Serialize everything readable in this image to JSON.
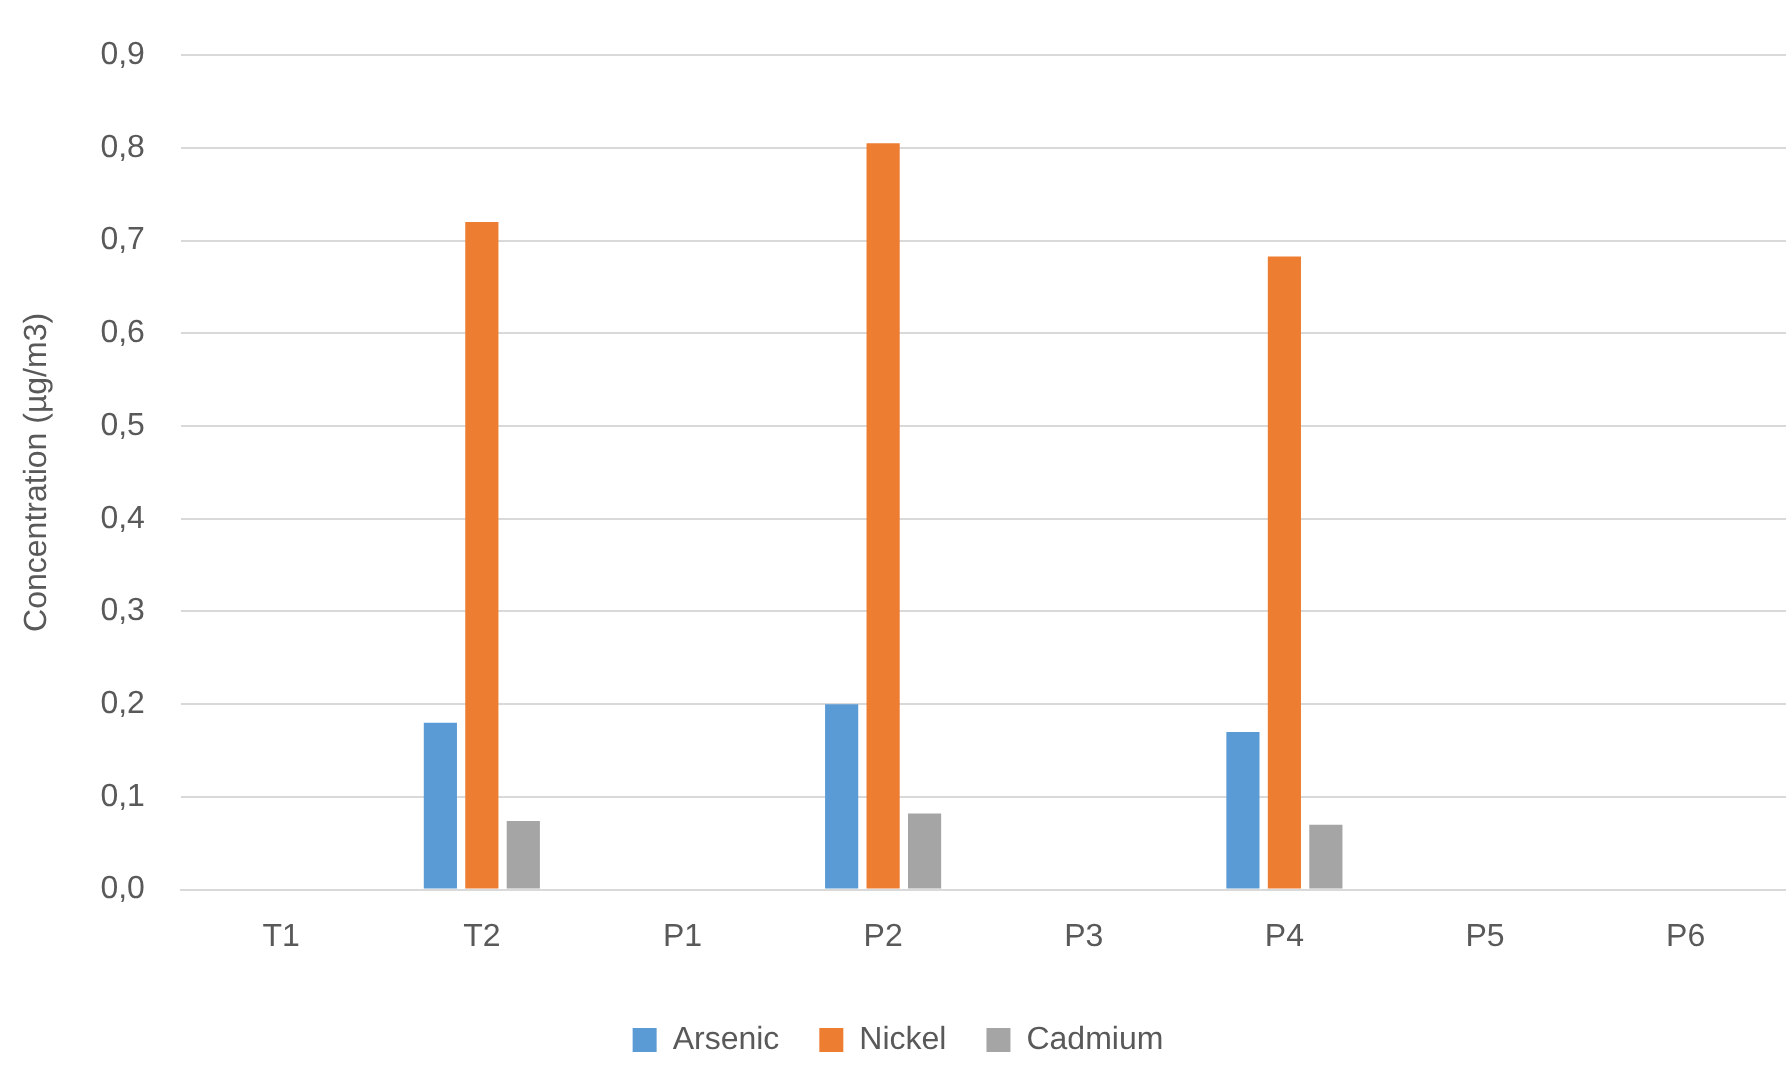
{
  "chart_data": {
    "type": "bar",
    "ylabel": "Concentration (µg/m3)",
    "categories": [
      "T1",
      "T2",
      "P1",
      "P2",
      "P3",
      "P4",
      "P5",
      "P6"
    ],
    "series": [
      {
        "name": "Arsenic",
        "color": "#5b9bd5",
        "values": [
          null,
          0.18,
          null,
          0.2,
          null,
          0.17,
          null,
          null
        ]
      },
      {
        "name": "Nickel",
        "color": "#ed7d31",
        "values": [
          null,
          0.72,
          null,
          0.805,
          null,
          0.683,
          null,
          null
        ]
      },
      {
        "name": "Cadmium",
        "color": "#a5a5a5",
        "values": [
          null,
          0.074,
          null,
          0.082,
          null,
          0.07,
          null,
          null
        ]
      }
    ],
    "ylim": [
      0,
      0.9
    ],
    "yticks": [
      {
        "value": 0,
        "label": "0,0"
      },
      {
        "value": 0.1,
        "label": "0,1"
      },
      {
        "value": 0.2,
        "label": "0,2"
      },
      {
        "value": 0.3,
        "label": "0,3"
      },
      {
        "value": 0.4,
        "label": "0,4"
      },
      {
        "value": 0.5,
        "label": "0,5"
      },
      {
        "value": 0.6,
        "label": "0,6"
      },
      {
        "value": 0.7,
        "label": "0,7"
      },
      {
        "value": 0.8,
        "label": "0,8"
      },
      {
        "value": 0.9,
        "label": "0,9"
      }
    ],
    "grid": "y",
    "legend": "bottom"
  }
}
